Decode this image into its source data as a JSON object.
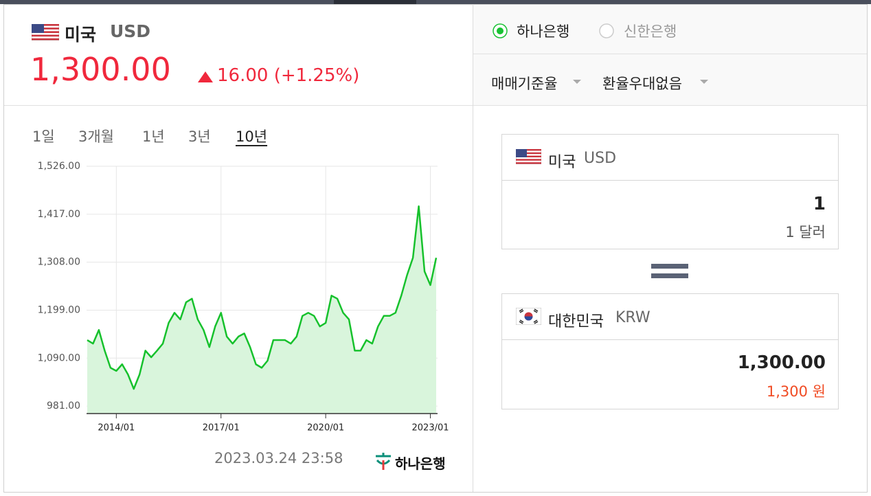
{
  "header": {
    "country": "미국",
    "code": "USD",
    "price": "1,300.00",
    "change": "16.00 (+1.25%)"
  },
  "tabs": [
    "1일",
    "3개월",
    "1년",
    "3년",
    "10년"
  ],
  "chart_data": {
    "type": "line",
    "x": [
      "2013/03",
      "2013/05",
      "2013/07",
      "2013/09",
      "2013/11",
      "2014/01",
      "2014/03",
      "2014/05",
      "2014/07",
      "2014/09",
      "2014/11",
      "2015/01",
      "2015/03",
      "2015/05",
      "2015/07",
      "2015/09",
      "2015/11",
      "2016/01",
      "2016/03",
      "2016/05",
      "2016/07",
      "2016/09",
      "2016/11",
      "2017/01",
      "2017/03",
      "2017/05",
      "2017/07",
      "2017/09",
      "2017/11",
      "2018/01",
      "2018/03",
      "2018/05",
      "2018/07",
      "2018/09",
      "2018/11",
      "2019/01",
      "2019/03",
      "2019/05",
      "2019/07",
      "2019/09",
      "2019/11",
      "2020/01",
      "2020/03",
      "2020/05",
      "2020/07",
      "2020/09",
      "2020/11",
      "2021/01",
      "2021/03",
      "2021/05",
      "2021/07",
      "2021/09",
      "2021/11",
      "2022/01",
      "2022/03",
      "2022/05",
      "2022/07",
      "2022/09",
      "2022/11",
      "2023/01",
      "2023/03"
    ],
    "series": [
      {
        "color": "#16c12c",
        "values": [
          1131,
          1123,
          1154,
          1107,
          1068,
          1061,
          1076,
          1053,
          1020,
          1053,
          1107,
          1092,
          1107,
          1123,
          1170,
          1193,
          1178,
          1217,
          1225,
          1178,
          1154,
          1115,
          1162,
          1193,
          1139,
          1123,
          1139,
          1146,
          1115,
          1076,
          1068,
          1084,
          1131,
          1131,
          1131,
          1123,
          1139,
          1186,
          1193,
          1186,
          1162,
          1170,
          1232,
          1225,
          1193,
          1178,
          1107,
          1107,
          1131,
          1123,
          1162,
          1186,
          1186,
          1193,
          1232,
          1279,
          1318,
          1435,
          1287,
          1256,
          1318
        ]
      }
    ],
    "fill": "#d9f5dc",
    "ylim": [
      964,
      1526
    ],
    "yticks": [
      {
        "value": 981,
        "label": "981.00"
      },
      {
        "value": 1090,
        "label": "1,090.00"
      },
      {
        "value": 1199,
        "label": "1,199.00"
      },
      {
        "value": 1308,
        "label": "1,308.00"
      },
      {
        "value": 1417,
        "label": "1,417.00"
      },
      {
        "value": 1526,
        "label": "1,526.00"
      }
    ],
    "xticks": [
      "2014/01",
      "2017/01",
      "2020/01",
      "2023/01"
    ],
    "grid": true
  },
  "footer": {
    "timestamp": "2023.03.24 23:58",
    "bank": "하나은행"
  },
  "banks": [
    "하나은행",
    "신한은행"
  ],
  "dropdowns": [
    "매매기준율",
    "환율우대없음"
  ],
  "converter": {
    "from": {
      "country": "미국",
      "code": "USD",
      "amount": "1",
      "amount_text": "1 달러"
    },
    "to": {
      "country": "대한민국",
      "code": "KRW",
      "amount": "1,300.00",
      "amount_text": "1,300 원"
    }
  }
}
